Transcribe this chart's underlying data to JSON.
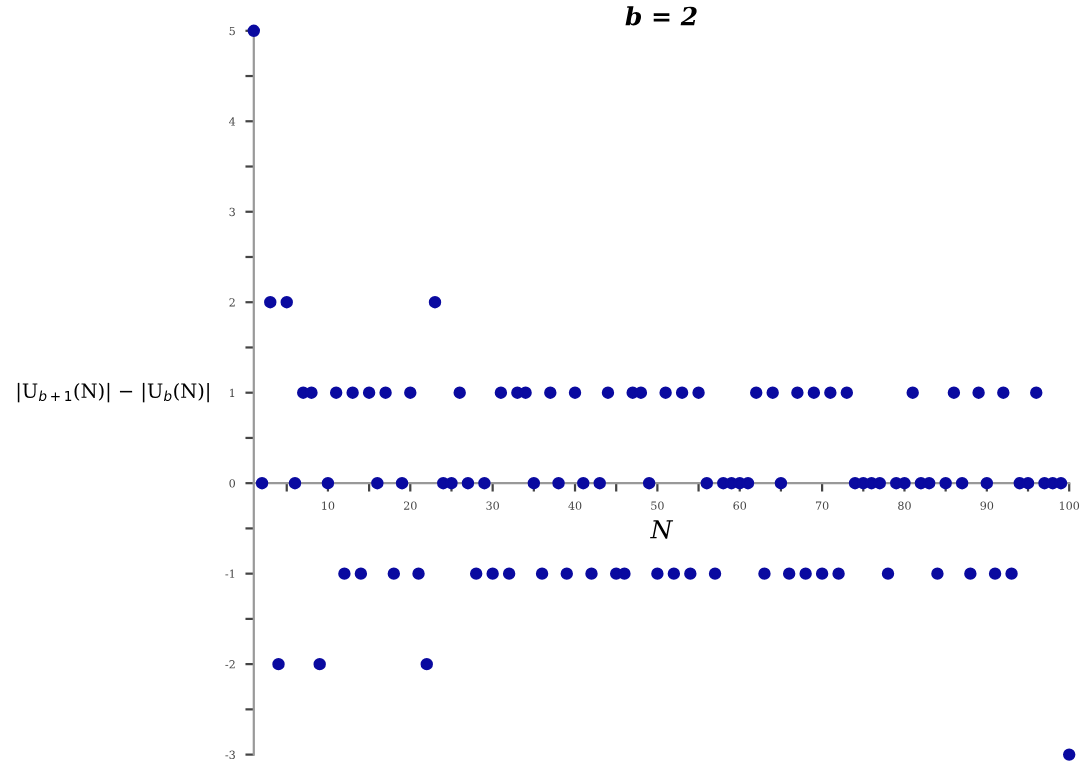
{
  "chart_data": {
    "type": "scatter",
    "title": "b = 2",
    "xlabel": "N",
    "ylabel": "|U$_{b+1}$(N)| − |U$_{b}$(N)|",
    "x": [
      1,
      2,
      3,
      4,
      5,
      6,
      7,
      8,
      9,
      10,
      11,
      12,
      13,
      14,
      15,
      16,
      17,
      18,
      19,
      20,
      21,
      22,
      23,
      24,
      25,
      26,
      27,
      28,
      29,
      30,
      31,
      32,
      33,
      34,
      35,
      36,
      37,
      38,
      39,
      40,
      41,
      42,
      43,
      44,
      45,
      46,
      47,
      48,
      49,
      50,
      51,
      52,
      53,
      54,
      55,
      56,
      57,
      58,
      59,
      60,
      61,
      62,
      63,
      64,
      65,
      66,
      67,
      68,
      69,
      70,
      71,
      72,
      73,
      74,
      75,
      76,
      77,
      78,
      79,
      80,
      81,
      82,
      83,
      84,
      85,
      86,
      87,
      88,
      89,
      90,
      91,
      92,
      93,
      94,
      95,
      96,
      97,
      98,
      99,
      100
    ],
    "series": [
      {
        "color": "#0a0aa0",
        "values": [
          5,
          0,
          2,
          -2,
          2,
          0,
          1,
          1,
          -2,
          0,
          1,
          -1,
          1,
          -1,
          1,
          0,
          1,
          -1,
          0,
          1,
          -1,
          -2,
          2,
          0,
          0,
          1,
          0,
          -1,
          0,
          -1,
          1,
          -1,
          1,
          1,
          0,
          -1,
          1,
          0,
          -1,
          1,
          0,
          -1,
          0,
          1,
          -1,
          -1,
          1,
          1,
          0,
          -1,
          1,
          -1,
          1,
          -1,
          1,
          0,
          -1,
          0,
          0,
          0,
          0,
          1,
          -1,
          1,
          0,
          -1,
          1,
          -1,
          1,
          -1,
          1,
          -1,
          1,
          0,
          0,
          0,
          0,
          -1,
          0,
          0,
          1,
          0,
          0,
          -1,
          0,
          1,
          0,
          -1,
          1,
          0,
          -1,
          1,
          -1,
          0,
          0,
          1,
          0,
          0,
          0,
          -3
        ]
      }
    ],
    "marker": "circle",
    "grid": false,
    "xlim": [
      1,
      100
    ],
    "ylim": [
      -3,
      5
    ],
    "xticks": [
      {
        "value": 5,
        "label": null
      },
      10,
      {
        "value": 15,
        "label": null
      },
      20,
      {
        "value": 25,
        "label": null
      },
      30,
      {
        "value": 35,
        "label": null
      },
      40,
      {
        "value": 45,
        "label": null
      },
      50,
      {
        "value": 55,
        "label": null
      },
      60,
      {
        "value": 65,
        "label": null
      },
      70,
      {
        "value": 75,
        "label": null
      },
      80,
      {
        "value": 85,
        "label": null
      },
      90,
      {
        "value": 95,
        "label": null
      },
      100
    ],
    "yticks": [
      -3,
      {
        "value": -2.5,
        "label": null
      },
      -2,
      {
        "value": -1.5,
        "label": null
      },
      -1,
      {
        "value": -0.5,
        "label": null
      },
      0,
      {
        "value": 0.5,
        "label": null
      },
      1,
      {
        "value": 1.5,
        "label": null
      },
      2,
      {
        "value": 2.5,
        "label": null
      },
      3,
      {
        "value": 3.5,
        "label": null
      },
      4,
      {
        "value": 4.5,
        "label": null
      },
      5
    ]
  }
}
